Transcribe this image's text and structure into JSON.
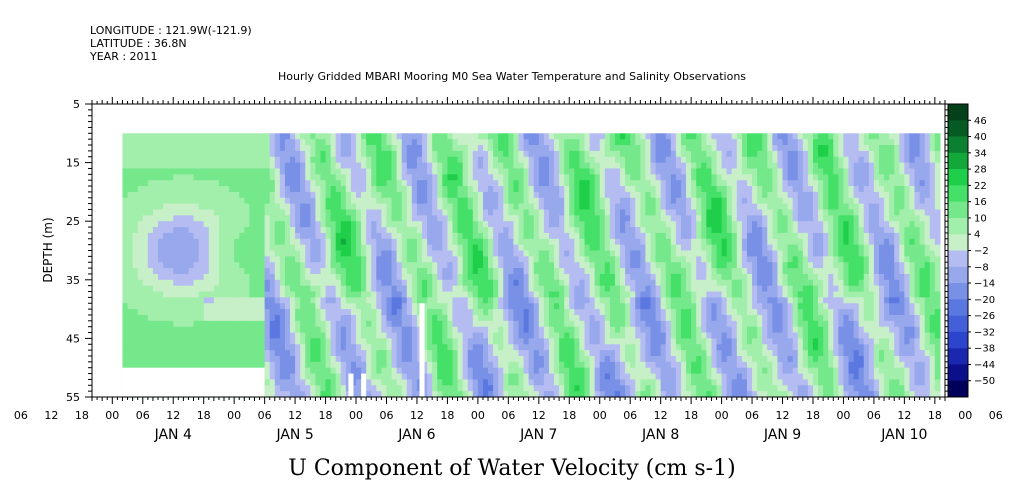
{
  "header": {
    "longitude": "LONGITUDE : 121.9W(-121.9)",
    "latitude": "LATITUDE : 36.8N",
    "year": "YEAR : 2011"
  },
  "chart_data": {
    "type": "heatmap",
    "title": "Hourly Gridded MBARI Mooring M0 Sea Water Temperature and Salinity Observations",
    "xlabel": "U Component of Water Velocity (cm s-1)",
    "ylabel": "DEPTH (m)",
    "x_range_hours": [
      -4,
      164
    ],
    "x_tick_labels": [
      "00",
      "06",
      "12",
      "18",
      "00",
      "06",
      "12",
      "18",
      "00",
      "06",
      "12",
      "18",
      "00",
      "06",
      "12",
      "18",
      "00",
      "06",
      "12",
      "18",
      "00",
      "06",
      "12",
      "18",
      "00",
      "06",
      "12",
      "18",
      "00",
      "06",
      "12",
      "18",
      "00",
      "06",
      "12",
      "18",
      "00",
      "06",
      "12",
      "18",
      "00",
      "06",
      "12",
      "18",
      "00",
      "06",
      "12",
      "18"
    ],
    "x_day_labels": [
      "JAN  4",
      "JAN  5",
      "JAN  6",
      "JAN  7",
      "JAN  8",
      "JAN  9",
      "JAN 10"
    ],
    "ylim": [
      5,
      55
    ],
    "y_inverted": true,
    "y_ticks": [
      5,
      15,
      25,
      35,
      45,
      55
    ],
    "data_depth_range": [
      10,
      55
    ],
    "data_time_range_hours": [
      2,
      163
    ],
    "colorbar": {
      "levels": [
        -50,
        -44,
        -38,
        -32,
        -26,
        -20,
        -14,
        -8,
        -2,
        4,
        10,
        16,
        22,
        28,
        34,
        40,
        46
      ],
      "labels": [
        "46",
        "40",
        "34",
        "28",
        "22",
        "16",
        "10",
        "4",
        "−2",
        "−8",
        "−14",
        "−20",
        "−26",
        "−32",
        "−38",
        "−44",
        "−50"
      ],
      "colors": [
        "#00005a",
        "#0b0f8a",
        "#1a28b0",
        "#2d44cc",
        "#4460d8",
        "#5b78e0",
        "#7890e6",
        "#98a8ec",
        "#b4bcf2",
        "#c8f0c8",
        "#a2eeab",
        "#74e88a",
        "#44e068",
        "#1fcf4a",
        "#12a83a",
        "#0b8030",
        "#065a24",
        "#04401a"
      ]
    },
    "gaps": [
      {
        "t_start": 2,
        "t_end": 30,
        "depth_start": 50,
        "depth_end": 55
      },
      {
        "t_start": 46.5,
        "t_end": 47.5,
        "depth_start": 51,
        "depth_end": 55
      },
      {
        "t_start": 49,
        "t_end": 50,
        "depth_start": 51,
        "depth_end": 55
      },
      {
        "t_start": 60.5,
        "t_end": 61.5,
        "depth_start": 39,
        "depth_end": 55
      }
    ],
    "grid": false
  }
}
